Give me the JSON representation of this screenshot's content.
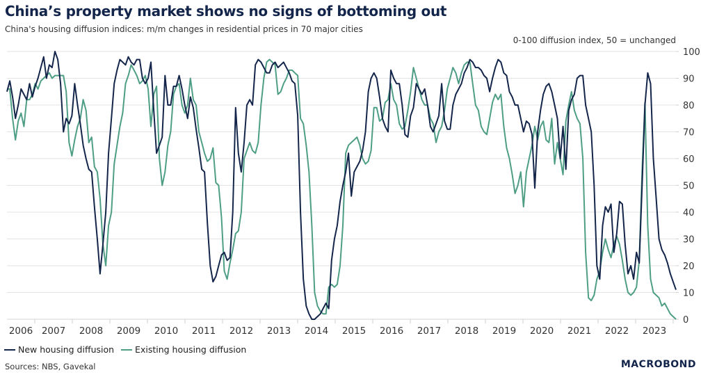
{
  "header": {
    "title": "China’s property market shows no signs of bottoming out",
    "subtitle": "China's housing diffusion indices: m/m changes in residential prices in 70 major cities",
    "unit_label": "0-100 diffusion index, 50 = unchanged"
  },
  "footer": {
    "source": "Sources: NBS, Gavekal",
    "logo": "MACROBOND"
  },
  "colors": {
    "new_housing": "#13254a",
    "existing_housing": "#4e9e86",
    "grid": "#e3e3e3",
    "axis_text": "#333333"
  },
  "chart_data": {
    "type": "line",
    "title": "China’s property market shows no signs of bottoming out",
    "subtitle": "China's housing diffusion indices: m/m changes in residential prices in 70 major cities",
    "xlabel": "",
    "ylabel": "0-100 diffusion index, 50 = unchanged",
    "ylim": [
      0,
      100
    ],
    "yticks": [
      0,
      10,
      20,
      30,
      40,
      50,
      60,
      70,
      80,
      90,
      100
    ],
    "y_axis_side": "right",
    "grid": true,
    "legend_position": "bottom-left",
    "x_start": "2006-04",
    "x_frequency": "monthly",
    "xlim_years": [
      2006.0,
      2023.9
    ],
    "xtick_labels": [
      "2006",
      "2007",
      "2008",
      "2009",
      "2010",
      "2011",
      "2012",
      "2013",
      "2014",
      "2015",
      "2016",
      "2017",
      "2018",
      "2019",
      "2020",
      "2021",
      "2022",
      "2023"
    ],
    "series": [
      {
        "name": "New housing diffusion",
        "color": "#13254a",
        "values": [
          85,
          89,
          83,
          75,
          80,
          86,
          84,
          82,
          88,
          83,
          87,
          90,
          94,
          98,
          90,
          95,
          94,
          100,
          97,
          88,
          70,
          75,
          73,
          76,
          88,
          80,
          73,
          65,
          60,
          56,
          55,
          42,
          30,
          17,
          28,
          40,
          62,
          75,
          88,
          93,
          97,
          96,
          95,
          98,
          96,
          95,
          97,
          97,
          90,
          88,
          90,
          96,
          78,
          62,
          65,
          68,
          91,
          80,
          80,
          87,
          87,
          91,
          86,
          80,
          75,
          83,
          79,
          71,
          64,
          56,
          55,
          36,
          20,
          14,
          16,
          20,
          24,
          25,
          22,
          23,
          40,
          79,
          62,
          55,
          66,
          80,
          82,
          80,
          95,
          97,
          96,
          94,
          92,
          92,
          95,
          96,
          94,
          95,
          96,
          94,
          92,
          89,
          88,
          76,
          40,
          15,
          5,
          2,
          0,
          0,
          1,
          2,
          4,
          6,
          4,
          22,
          30,
          35,
          44,
          50,
          55,
          62,
          46,
          55,
          57,
          59,
          63,
          70,
          85,
          90,
          92,
          90,
          83,
          75,
          72,
          70,
          93,
          90,
          88,
          88,
          80,
          69,
          68,
          76,
          79,
          88,
          86,
          84,
          86,
          80,
          72,
          70,
          73,
          76,
          88,
          74,
          71,
          71,
          80,
          84,
          86,
          88,
          92,
          94,
          97,
          96,
          94,
          94,
          93,
          91,
          90,
          85,
          90,
          94,
          97,
          96,
          92,
          91,
          85,
          83,
          80,
          80,
          75,
          70,
          74,
          73,
          69,
          49,
          70,
          78,
          84,
          87,
          88,
          85,
          80,
          75,
          60,
          72,
          56,
          78,
          82,
          84,
          90,
          91,
          91,
          80,
          75,
          70,
          50,
          20,
          15,
          35,
          42,
          40,
          43,
          25,
          32,
          44,
          43,
          28,
          17,
          20,
          15,
          25,
          21,
          50,
          80,
          92,
          88,
          60,
          45,
          30,
          26,
          24,
          21,
          17,
          14,
          11
        ]
      },
      {
        "name": "Existing housing diffusion",
        "color": "#4e9e86",
        "values": [
          86,
          86,
          75,
          67,
          74,
          77,
          72,
          82,
          82,
          84,
          88,
          86,
          89,
          90,
          91,
          92,
          90,
          91,
          91,
          91,
          91,
          85,
          66,
          61,
          67,
          72,
          75,
          82,
          78,
          66,
          68,
          57,
          55,
          45,
          28,
          20,
          35,
          40,
          58,
          65,
          72,
          77,
          88,
          91,
          95,
          93,
          91,
          88,
          89,
          91,
          86,
          72,
          84,
          87,
          60,
          50,
          55,
          65,
          70,
          84,
          87,
          88,
          80,
          77,
          80,
          90,
          82,
          80,
          70,
          66,
          62,
          59,
          60,
          64,
          51,
          50,
          38,
          18,
          15,
          21,
          26,
          32,
          33,
          40,
          60,
          63,
          66,
          63,
          62,
          66,
          80,
          90,
          96,
          97,
          96,
          95,
          84,
          85,
          88,
          90,
          93,
          93,
          92,
          91,
          75,
          73,
          65,
          55,
          35,
          10,
          5,
          3,
          2,
          2,
          12,
          13,
          12,
          13,
          20,
          35,
          62,
          65,
          66,
          67,
          68,
          65,
          60,
          58,
          59,
          63,
          79,
          79,
          74,
          75,
          81,
          82,
          88,
          82,
          80,
          73,
          71,
          72,
          78,
          85,
          94,
          90,
          86,
          82,
          80,
          80,
          75,
          73,
          66,
          70,
          72,
          78,
          86,
          90,
          94,
          92,
          88,
          92,
          95,
          96,
          96,
          88,
          80,
          78,
          72,
          70,
          69,
          75,
          81,
          84,
          82,
          84,
          72,
          64,
          60,
          54,
          47,
          50,
          55,
          42,
          55,
          60,
          65,
          72,
          67,
          72,
          74,
          67,
          66,
          75,
          58,
          66,
          60,
          54,
          74,
          80,
          85,
          78,
          75,
          73,
          60,
          25,
          8,
          7,
          9,
          15,
          18,
          25,
          30,
          26,
          23,
          28,
          31,
          28,
          22,
          15,
          10,
          9,
          10,
          12,
          22,
          55,
          81,
          35,
          15,
          10,
          9,
          8,
          5,
          6,
          4,
          2,
          1,
          0
        ]
      }
    ]
  }
}
